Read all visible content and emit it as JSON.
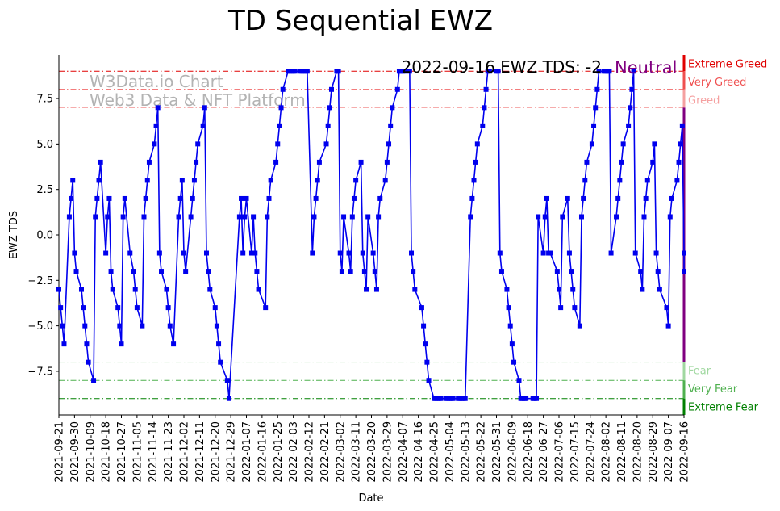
{
  "chart_data": {
    "type": "line",
    "title": "TD Sequential EWZ",
    "xlabel": "Date",
    "ylabel": "EWZ TDS",
    "ylim": [
      -9.9,
      9.9
    ],
    "yticks": [
      -7.5,
      -5.0,
      -2.5,
      0.0,
      2.5,
      5.0,
      7.5
    ],
    "ytick_labels": [
      "−7.5",
      "−5.0",
      "−2.5",
      "0.0",
      "2.5",
      "5.0",
      "7.5"
    ],
    "date_start": "2021-09-21",
    "date_end": "2022-09-16",
    "xtick_labels": [
      "2021-09-21",
      "2021-09-30",
      "2021-10-09",
      "2021-10-18",
      "2021-10-27",
      "2021-11-05",
      "2021-11-14",
      "2021-11-23",
      "2021-12-02",
      "2021-12-11",
      "2021-12-20",
      "2021-12-29",
      "2022-01-07",
      "2022-01-16",
      "2022-01-25",
      "2022-02-03",
      "2022-02-12",
      "2022-02-21",
      "2022-03-02",
      "2022-03-11",
      "2022-03-20",
      "2022-03-29",
      "2022-04-07",
      "2022-04-16",
      "2022-04-25",
      "2022-05-04",
      "2022-05-13",
      "2022-05-22",
      "2022-05-31",
      "2022-06-09",
      "2022-06-18",
      "2022-06-27",
      "2022-07-06",
      "2022-07-15",
      "2022-07-24",
      "2022-08-02",
      "2022-08-11",
      "2022-08-20",
      "2022-08-29",
      "2022-09-07",
      "2022-09-16"
    ],
    "series": [
      {
        "name": "EWZ TDS",
        "color": "#0000ee",
        "points": [
          [
            "2021-09-21",
            -3
          ],
          [
            "2021-09-22",
            -4
          ],
          [
            "2021-09-23",
            -5
          ],
          [
            "2021-09-24",
            -6
          ],
          [
            "2021-09-27",
            1
          ],
          [
            "2021-09-28",
            2
          ],
          [
            "2021-09-29",
            3
          ],
          [
            "2021-09-30",
            -1
          ],
          [
            "2021-10-01",
            -2
          ],
          [
            "2021-10-04",
            -3
          ],
          [
            "2021-10-05",
            -4
          ],
          [
            "2021-10-06",
            -5
          ],
          [
            "2021-10-07",
            -6
          ],
          [
            "2021-10-08",
            -7
          ],
          [
            "2021-10-11",
            -8
          ],
          [
            "2021-10-12",
            1
          ],
          [
            "2021-10-13",
            2
          ],
          [
            "2021-10-14",
            3
          ],
          [
            "2021-10-15",
            4
          ],
          [
            "2021-10-18",
            -1
          ],
          [
            "2021-10-19",
            1
          ],
          [
            "2021-10-20",
            2
          ],
          [
            "2021-10-21",
            -2
          ],
          [
            "2021-10-22",
            -3
          ],
          [
            "2021-10-25",
            -4
          ],
          [
            "2021-10-26",
            -5
          ],
          [
            "2021-10-27",
            -6
          ],
          [
            "2021-10-28",
            1
          ],
          [
            "2021-10-29",
            2
          ],
          [
            "2021-11-01",
            -1
          ],
          [
            "2021-11-03",
            -2
          ],
          [
            "2021-11-04",
            -3
          ],
          [
            "2021-11-05",
            -4
          ],
          [
            "2021-11-08",
            -5
          ],
          [
            "2021-11-09",
            1
          ],
          [
            "2021-11-10",
            2
          ],
          [
            "2021-11-11",
            3
          ],
          [
            "2021-11-12",
            4
          ],
          [
            "2021-11-15",
            5
          ],
          [
            "2021-11-16",
            6
          ],
          [
            "2021-11-17",
            7
          ],
          [
            "2021-11-18",
            -1
          ],
          [
            "2021-11-19",
            -2
          ],
          [
            "2021-11-22",
            -3
          ],
          [
            "2021-11-23",
            -4
          ],
          [
            "2021-11-24",
            -5
          ],
          [
            "2021-11-26",
            -6
          ],
          [
            "2021-11-29",
            1
          ],
          [
            "2021-11-30",
            2
          ],
          [
            "2021-12-01",
            3
          ],
          [
            "2021-12-02",
            -1
          ],
          [
            "2021-12-03",
            -2
          ],
          [
            "2021-12-06",
            1
          ],
          [
            "2021-12-07",
            2
          ],
          [
            "2021-12-08",
            3
          ],
          [
            "2021-12-09",
            4
          ],
          [
            "2021-12-10",
            5
          ],
          [
            "2021-12-13",
            6
          ],
          [
            "2021-12-14",
            7
          ],
          [
            "2021-12-15",
            -1
          ],
          [
            "2021-12-16",
            -2
          ],
          [
            "2021-12-17",
            -3
          ],
          [
            "2021-12-20",
            -4
          ],
          [
            "2021-12-21",
            -5
          ],
          [
            "2021-12-22",
            -6
          ],
          [
            "2021-12-23",
            -7
          ],
          [
            "2021-12-27",
            -8
          ],
          [
            "2021-12-28",
            -9
          ],
          [
            "2022-01-03",
            1
          ],
          [
            "2022-01-04",
            2
          ],
          [
            "2022-01-05",
            -1
          ],
          [
            "2022-01-06",
            1
          ],
          [
            "2022-01-07",
            2
          ],
          [
            "2022-01-10",
            -1
          ],
          [
            "2022-01-11",
            1
          ],
          [
            "2022-01-12",
            -1
          ],
          [
            "2022-01-13",
            -2
          ],
          [
            "2022-01-14",
            -3
          ],
          [
            "2022-01-18",
            -4
          ],
          [
            "2022-01-19",
            1
          ],
          [
            "2022-01-20",
            2
          ],
          [
            "2022-01-21",
            3
          ],
          [
            "2022-01-24",
            4
          ],
          [
            "2022-01-25",
            5
          ],
          [
            "2022-01-26",
            6
          ],
          [
            "2022-01-27",
            7
          ],
          [
            "2022-01-28",
            8
          ],
          [
            "2022-01-31",
            9
          ],
          [
            "2022-02-01",
            9
          ],
          [
            "2022-02-02",
            9
          ],
          [
            "2022-02-03",
            9
          ],
          [
            "2022-02-04",
            9
          ],
          [
            "2022-02-07",
            9
          ],
          [
            "2022-02-08",
            9
          ],
          [
            "2022-02-09",
            9
          ],
          [
            "2022-02-10",
            9
          ],
          [
            "2022-02-11",
            9
          ],
          [
            "2022-02-14",
            -1
          ],
          [
            "2022-02-15",
            1
          ],
          [
            "2022-02-16",
            2
          ],
          [
            "2022-02-17",
            3
          ],
          [
            "2022-02-18",
            4
          ],
          [
            "2022-02-22",
            5
          ],
          [
            "2022-02-23",
            6
          ],
          [
            "2022-02-24",
            7
          ],
          [
            "2022-02-25",
            8
          ],
          [
            "2022-02-28",
            9
          ],
          [
            "2022-03-01",
            9
          ],
          [
            "2022-03-02",
            -1
          ],
          [
            "2022-03-03",
            -2
          ],
          [
            "2022-03-04",
            1
          ],
          [
            "2022-03-07",
            -1
          ],
          [
            "2022-03-08",
            -2
          ],
          [
            "2022-03-09",
            1
          ],
          [
            "2022-03-10",
            2
          ],
          [
            "2022-03-11",
            3
          ],
          [
            "2022-03-14",
            4
          ],
          [
            "2022-03-15",
            -1
          ],
          [
            "2022-03-16",
            -2
          ],
          [
            "2022-03-17",
            -3
          ],
          [
            "2022-03-18",
            1
          ],
          [
            "2022-03-21",
            -1
          ],
          [
            "2022-03-22",
            -2
          ],
          [
            "2022-03-23",
            -3
          ],
          [
            "2022-03-24",
            1
          ],
          [
            "2022-03-25",
            2
          ],
          [
            "2022-03-28",
            3
          ],
          [
            "2022-03-29",
            4
          ],
          [
            "2022-03-30",
            5
          ],
          [
            "2022-03-31",
            6
          ],
          [
            "2022-04-01",
            7
          ],
          [
            "2022-04-04",
            8
          ],
          [
            "2022-04-05",
            9
          ],
          [
            "2022-04-06",
            9
          ],
          [
            "2022-04-07",
            9
          ],
          [
            "2022-04-08",
            9
          ],
          [
            "2022-04-11",
            9
          ],
          [
            "2022-04-12",
            -1
          ],
          [
            "2022-04-13",
            -2
          ],
          [
            "2022-04-14",
            -3
          ],
          [
            "2022-04-18",
            -4
          ],
          [
            "2022-04-19",
            -5
          ],
          [
            "2022-04-20",
            -6
          ],
          [
            "2022-04-21",
            -7
          ],
          [
            "2022-04-22",
            -8
          ],
          [
            "2022-04-25",
            -9
          ],
          [
            "2022-04-26",
            -9
          ],
          [
            "2022-04-27",
            -9
          ],
          [
            "2022-04-28",
            -9
          ],
          [
            "2022-04-29",
            -9
          ],
          [
            "2022-05-02",
            -9
          ],
          [
            "2022-05-03",
            -9
          ],
          [
            "2022-05-04",
            -9
          ],
          [
            "2022-05-05",
            -9
          ],
          [
            "2022-05-06",
            -9
          ],
          [
            "2022-05-09",
            -9
          ],
          [
            "2022-05-10",
            -9
          ],
          [
            "2022-05-11",
            -9
          ],
          [
            "2022-05-12",
            -9
          ],
          [
            "2022-05-13",
            -9
          ],
          [
            "2022-05-16",
            1
          ],
          [
            "2022-05-17",
            2
          ],
          [
            "2022-05-18",
            3
          ],
          [
            "2022-05-19",
            4
          ],
          [
            "2022-05-20",
            5
          ],
          [
            "2022-05-23",
            6
          ],
          [
            "2022-05-24",
            7
          ],
          [
            "2022-05-25",
            8
          ],
          [
            "2022-05-26",
            9
          ],
          [
            "2022-05-27",
            9
          ],
          [
            "2022-05-31",
            9
          ],
          [
            "2022-06-01",
            9
          ],
          [
            "2022-06-02",
            -1
          ],
          [
            "2022-06-03",
            -2
          ],
          [
            "2022-06-06",
            -3
          ],
          [
            "2022-06-07",
            -4
          ],
          [
            "2022-06-08",
            -5
          ],
          [
            "2022-06-09",
            -6
          ],
          [
            "2022-06-10",
            -7
          ],
          [
            "2022-06-13",
            -8
          ],
          [
            "2022-06-14",
            -9
          ],
          [
            "2022-06-15",
            -9
          ],
          [
            "2022-06-16",
            -9
          ],
          [
            "2022-06-17",
            -9
          ],
          [
            "2022-06-21",
            -9
          ],
          [
            "2022-06-22",
            -9
          ],
          [
            "2022-06-23",
            -9
          ],
          [
            "2022-06-24",
            1
          ],
          [
            "2022-06-27",
            -1
          ],
          [
            "2022-06-28",
            1
          ],
          [
            "2022-06-29",
            2
          ],
          [
            "2022-06-30",
            -1
          ],
          [
            "2022-07-01",
            -1
          ],
          [
            "2022-07-05",
            -2
          ],
          [
            "2022-07-06",
            -3
          ],
          [
            "2022-07-07",
            -4
          ],
          [
            "2022-07-08",
            1
          ],
          [
            "2022-07-11",
            2
          ],
          [
            "2022-07-12",
            -1
          ],
          [
            "2022-07-13",
            -2
          ],
          [
            "2022-07-14",
            -3
          ],
          [
            "2022-07-15",
            -4
          ],
          [
            "2022-07-18",
            -5
          ],
          [
            "2022-07-19",
            1
          ],
          [
            "2022-07-20",
            2
          ],
          [
            "2022-07-21",
            3
          ],
          [
            "2022-07-22",
            4
          ],
          [
            "2022-07-25",
            5
          ],
          [
            "2022-07-26",
            6
          ],
          [
            "2022-07-27",
            7
          ],
          [
            "2022-07-28",
            8
          ],
          [
            "2022-07-29",
            9
          ],
          [
            "2022-08-01",
            9
          ],
          [
            "2022-08-02",
            9
          ],
          [
            "2022-08-03",
            9
          ],
          [
            "2022-08-04",
            9
          ],
          [
            "2022-08-05",
            -1
          ],
          [
            "2022-08-08",
            1
          ],
          [
            "2022-08-09",
            2
          ],
          [
            "2022-08-10",
            3
          ],
          [
            "2022-08-11",
            4
          ],
          [
            "2022-08-12",
            5
          ],
          [
            "2022-08-15",
            6
          ],
          [
            "2022-08-16",
            7
          ],
          [
            "2022-08-17",
            8
          ],
          [
            "2022-08-18",
            9
          ],
          [
            "2022-08-19",
            -1
          ],
          [
            "2022-08-22",
            -2
          ],
          [
            "2022-08-23",
            -3
          ],
          [
            "2022-08-24",
            1
          ],
          [
            "2022-08-25",
            2
          ],
          [
            "2022-08-26",
            3
          ],
          [
            "2022-08-29",
            4
          ],
          [
            "2022-08-30",
            5
          ],
          [
            "2022-08-31",
            -1
          ],
          [
            "2022-09-01",
            -2
          ],
          [
            "2022-09-02",
            -3
          ],
          [
            "2022-09-06",
            -4
          ],
          [
            "2022-09-07",
            -5
          ],
          [
            "2022-09-08",
            1
          ],
          [
            "2022-09-09",
            2
          ],
          [
            "2022-09-12",
            3
          ],
          [
            "2022-09-13",
            4
          ],
          [
            "2022-09-14",
            5
          ],
          [
            "2022-09-15",
            6
          ],
          [
            "2022-09-16",
            -1
          ],
          [
            "2022-09-16",
            -2
          ]
        ]
      }
    ],
    "reference_lines": [
      {
        "y": 9,
        "label": "Extreme Greed",
        "color": "#e00000"
      },
      {
        "y": 8,
        "label": "Very Greed",
        "color": "#ef5050"
      },
      {
        "y": 7,
        "label": "Greed",
        "color": "#f5a0a0"
      },
      {
        "y": -7,
        "label": "Fear",
        "color": "#a0d8a0"
      },
      {
        "y": -8,
        "label": "Very Fear",
        "color": "#4fb04f"
      },
      {
        "y": -9,
        "label": "Extreme Fear",
        "color": "#008000"
      }
    ],
    "current": {
      "label": "2022-09-16 EWZ TDS: -2",
      "status": "Neutral",
      "status_color": "#800080"
    },
    "watermark": [
      "W3Data.io Chart",
      "Web3 Data & NFT Platform"
    ]
  }
}
